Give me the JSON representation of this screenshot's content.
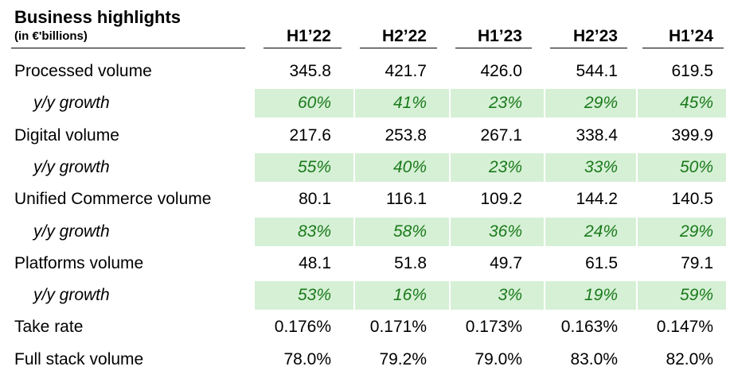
{
  "title": "Business highlights",
  "subtitle": "(in €'billions)",
  "colors": {
    "growth_background": "#d6f0d6",
    "growth_text": "#1a7a1a",
    "text": "#000000"
  },
  "columns": [
    "H1’22",
    "H2’22",
    "H1’23",
    "H2’23",
    "H1’24"
  ],
  "rows": [
    {
      "label": "Processed volume",
      "type": "main",
      "values": [
        "345.8",
        "421.7",
        "426.0",
        "544.1",
        "619.5"
      ]
    },
    {
      "label": "y/y growth",
      "type": "growth",
      "values": [
        "60%",
        "41%",
        "23%",
        "29%",
        "45%"
      ]
    },
    {
      "label": "Digital volume",
      "type": "main",
      "values": [
        "217.6",
        "253.8",
        "267.1",
        "338.4",
        "399.9"
      ]
    },
    {
      "label": "y/y growth",
      "type": "growth",
      "values": [
        "55%",
        "40%",
        "23%",
        "33%",
        "50%"
      ]
    },
    {
      "label": "Unified Commerce volume",
      "type": "main",
      "values": [
        "80.1",
        "116.1",
        "109.2",
        "144.2",
        "140.5"
      ]
    },
    {
      "label": "y/y growth",
      "type": "growth",
      "values": [
        "83%",
        "58%",
        "36%",
        "24%",
        "29%"
      ]
    },
    {
      "label": "Platforms volume",
      "type": "main",
      "values": [
        "48.1",
        "51.8",
        "49.7",
        "61.5",
        "79.1"
      ]
    },
    {
      "label": "y/y growth",
      "type": "growth",
      "values": [
        "53%",
        "16%",
        "3%",
        "19%",
        "59%"
      ]
    },
    {
      "label": "Take rate",
      "type": "main",
      "values": [
        "0.176%",
        "0.171%",
        "0.173%",
        "0.163%",
        "0.147%"
      ]
    },
    {
      "label": "Full stack volume",
      "type": "main",
      "values": [
        "78.0%",
        "79.2%",
        "79.0%",
        "83.0%",
        "82.0%"
      ]
    }
  ]
}
